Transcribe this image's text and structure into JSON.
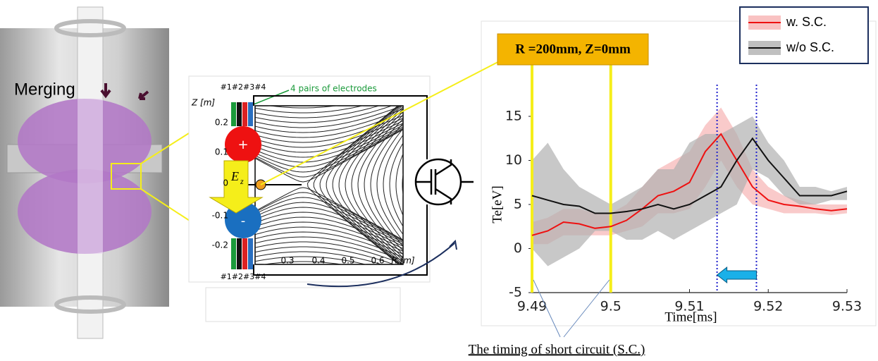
{
  "chart_data": {
    "type": "line",
    "x_label": "Time[ms]",
    "y_label": "Te[eV]",
    "x": [
      9.49,
      9.492,
      9.494,
      9.496,
      9.498,
      9.5,
      9.502,
      9.504,
      9.506,
      9.508,
      9.51,
      9.512,
      9.514,
      9.516,
      9.518,
      9.52,
      9.522,
      9.524,
      9.526,
      9.528,
      9.53
    ],
    "series": [
      {
        "name": "w. S.C.",
        "color": "#ee1111",
        "band_color": "#f7b3b3",
        "values": [
          1.5,
          2.0,
          3.0,
          2.8,
          2.3,
          2.5,
          3.2,
          4.5,
          6.0,
          6.5,
          7.5,
          11.0,
          13.0,
          10.0,
          7.0,
          5.5,
          5.0,
          4.8,
          4.5,
          4.3,
          4.5
        ],
        "lower": [
          0.5,
          0.5,
          1.5,
          1.5,
          1.5,
          1.5,
          2,
          2.5,
          4,
          4,
          4.5,
          7,
          10,
          7,
          5,
          4.5,
          4,
          4,
          4,
          3.8,
          4
        ],
        "upper": [
          3,
          3.5,
          4.5,
          4.5,
          4,
          4,
          5,
          7,
          9,
          10,
          11,
          14,
          16,
          13,
          9,
          7,
          6,
          5.5,
          5,
          5,
          5
        ]
      },
      {
        "name": "w/o S.C.",
        "color": "#111111",
        "band_color": "#b0b0b0",
        "values": [
          6.0,
          5.5,
          5.0,
          4.8,
          4.0,
          4.0,
          4.2,
          4.5,
          5.0,
          4.5,
          5.0,
          6.0,
          7.0,
          10.0,
          12.5,
          10.0,
          8.0,
          6.0,
          6.0,
          6.0,
          6.5
        ],
        "lower": [
          0,
          -2,
          -1,
          0,
          2,
          2,
          1,
          1,
          2,
          1,
          2,
          3,
          4,
          5,
          9,
          8,
          6,
          5,
          5,
          5.5,
          5.5
        ],
        "upper": [
          10,
          12,
          9,
          7,
          6,
          5,
          6,
          7,
          9,
          9,
          12,
          13,
          13,
          14,
          15,
          12,
          10,
          7,
          7,
          6.5,
          7
        ]
      }
    ],
    "xlim": [
      9.49,
      9.53
    ],
    "xticks": [
      9.49,
      9.5,
      9.51,
      9.52,
      9.53
    ],
    "ylim": [
      -5,
      25
    ],
    "yticks": [
      -5,
      0,
      5,
      10,
      15
    ],
    "markers": [
      {
        "x": 9.49,
        "color": "#f5ee1a",
        "style": "solid"
      },
      {
        "x": 9.5,
        "color": "#f5ee1a",
        "style": "solid"
      },
      {
        "x": 9.5135,
        "color": "#2222cc",
        "style": "dotted"
      },
      {
        "x": 9.5185,
        "color": "#2222cc",
        "style": "dotted"
      }
    ],
    "arrow": {
      "from": 9.5185,
      "to": 9.5135,
      "y": -3,
      "color": "#1ab0e8"
    },
    "annotation": "R =200mm, Z=0mm",
    "caption": "The timing of short circuit (S.C.)"
  },
  "diagram": {
    "merging": "Merging",
    "electrodes_top": "#1#2#3#4",
    "electrodes_bottom": "#1#2#3#4",
    "electrodes_note": "4 pairs of electrodes",
    "z_label": "Z [m]",
    "z_ticks": [
      "0.2",
      "0.1",
      "0",
      "-0.1",
      "-0.2"
    ],
    "r_ticks": [
      "0.3",
      "0.4",
      "0.5",
      "0.6"
    ],
    "r_label": "R [m]",
    "plus": "+",
    "minus": "-",
    "field": "E",
    "field_sub": "z"
  }
}
